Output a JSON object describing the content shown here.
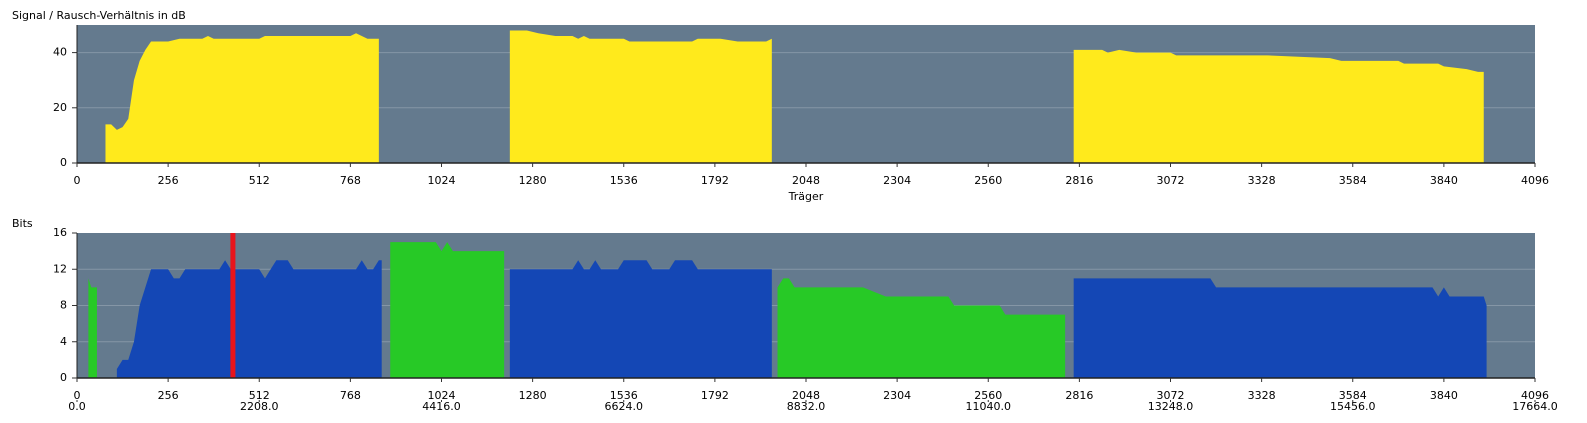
{
  "chart_data": [
    {
      "type": "area",
      "title": "Signal / Rausch-Verhältnis in dB",
      "x_label": "Träger",
      "xlim": [
        0,
        4096
      ],
      "xticks": [
        0,
        256,
        512,
        768,
        1024,
        1280,
        1536,
        1792,
        2048,
        2304,
        2560,
        2816,
        3072,
        3328,
        3584,
        3840,
        4096
      ],
      "ylim": [
        0,
        50
      ],
      "yticks": [
        0,
        20,
        40
      ],
      "grid": true,
      "background": "#647a8e",
      "series": [
        {
          "color": "#ffea1c",
          "x": [
            80,
            96,
            112,
            128,
            144,
            160,
            176,
            192,
            208,
            256,
            288,
            352,
            368,
            384,
            512,
            528,
            544,
            768,
            784,
            800,
            816,
            848
          ],
          "values": [
            14,
            14,
            12,
            13,
            16,
            30,
            37,
            41,
            44,
            44,
            45,
            45,
            46,
            45,
            45,
            46,
            46,
            46,
            47,
            46,
            45,
            45
          ]
        },
        {
          "color": "#ffea1c",
          "x": [
            1216,
            1264,
            1296,
            1344,
            1392,
            1408,
            1424,
            1440,
            1536,
            1552,
            1728,
            1744,
            1808,
            1856,
            1936,
            1952
          ],
          "values": [
            48,
            48,
            47,
            46,
            46,
            45,
            46,
            45,
            45,
            44,
            44,
            45,
            45,
            44,
            44,
            45
          ]
        },
        {
          "color": "#ffea1c",
          "x": [
            2800,
            2880,
            2896,
            2928,
            2976,
            3072,
            3088,
            3328,
            3344,
            3520,
            3552,
            3712,
            3728,
            3824,
            3840,
            3904,
            3936,
            3952
          ],
          "values": [
            41,
            41,
            40,
            41,
            40,
            40,
            39,
            39,
            39,
            38,
            37,
            37,
            36,
            36,
            35,
            34,
            33,
            33
          ]
        }
      ]
    },
    {
      "type": "area",
      "title": "Bits",
      "xlim": [
        0,
        4096
      ],
      "xticks": [
        0,
        256,
        512,
        768,
        1024,
        1280,
        1536,
        1792,
        2048,
        2304,
        2560,
        2816,
        3072,
        3328,
        3584,
        3840,
        4096
      ],
      "x2lim": [
        0,
        17664
      ],
      "x2ticks": [
        {
          "value": 0,
          "label": "0.0"
        },
        {
          "value": 2208,
          "label": "2208.0"
        },
        {
          "value": 4416,
          "label": "4416.0"
        },
        {
          "value": 6624,
          "label": "6624.0"
        },
        {
          "value": 8832,
          "label": "8832.0"
        },
        {
          "value": 11040,
          "label": "11040.0"
        },
        {
          "value": 13248,
          "label": "13248.0"
        },
        {
          "value": 15456,
          "label": "15456.0"
        },
        {
          "value": 17664,
          "label": "17664.0"
        }
      ],
      "ylim": [
        0,
        16
      ],
      "yticks": [
        0,
        4,
        8,
        12,
        16
      ],
      "grid": true,
      "background": "#647a8e",
      "series": [
        {
          "color": "#27c926",
          "x": [
            32,
            40,
            48,
            56
          ],
          "values": [
            11,
            10,
            10,
            10
          ]
        },
        {
          "color": "#27c926",
          "x": [
            880,
            1008,
            1024,
            1040,
            1056,
            1200
          ],
          "values": [
            15,
            15,
            14,
            15,
            14,
            14
          ]
        },
        {
          "color": "#27c926",
          "x": [
            1968,
            1984,
            2000,
            2016,
            2208,
            2272,
            2448,
            2464,
            2592,
            2608,
            2776
          ],
          "values": [
            10,
            11,
            11,
            10,
            10,
            9,
            9,
            8,
            8,
            7,
            7
          ]
        },
        {
          "color": "#1447b5",
          "x": [
            112,
            128,
            144,
            160,
            176,
            192,
            208,
            256,
            272,
            288,
            304,
            400,
            416,
            432,
            512,
            528,
            544,
            560,
            592,
            608,
            784,
            800,
            816,
            832,
            848,
            856
          ],
          "values": [
            1,
            2,
            2,
            4,
            8,
            10,
            12,
            12,
            11,
            11,
            12,
            12,
            13,
            12,
            12,
            11,
            12,
            13,
            13,
            12,
            12,
            13,
            12,
            12,
            13,
            13
          ]
        },
        {
          "color": "#1447b5",
          "x": [
            1216,
            1392,
            1408,
            1424,
            1440,
            1456,
            1472,
            1520,
            1536,
            1600,
            1616,
            1664,
            1680,
            1728,
            1744,
            1952
          ],
          "values": [
            12,
            12,
            13,
            12,
            12,
            13,
            12,
            12,
            13,
            13,
            12,
            12,
            13,
            13,
            12,
            12
          ]
        },
        {
          "color": "#1447b5",
          "x": [
            2800,
            3184,
            3200,
            3808,
            3824,
            3840,
            3856,
            3952,
            3960
          ],
          "values": [
            11,
            11,
            10,
            10,
            9,
            10,
            9,
            9,
            8
          ]
        }
      ],
      "marker": {
        "x": 438,
        "color": "#e8141c"
      }
    }
  ]
}
